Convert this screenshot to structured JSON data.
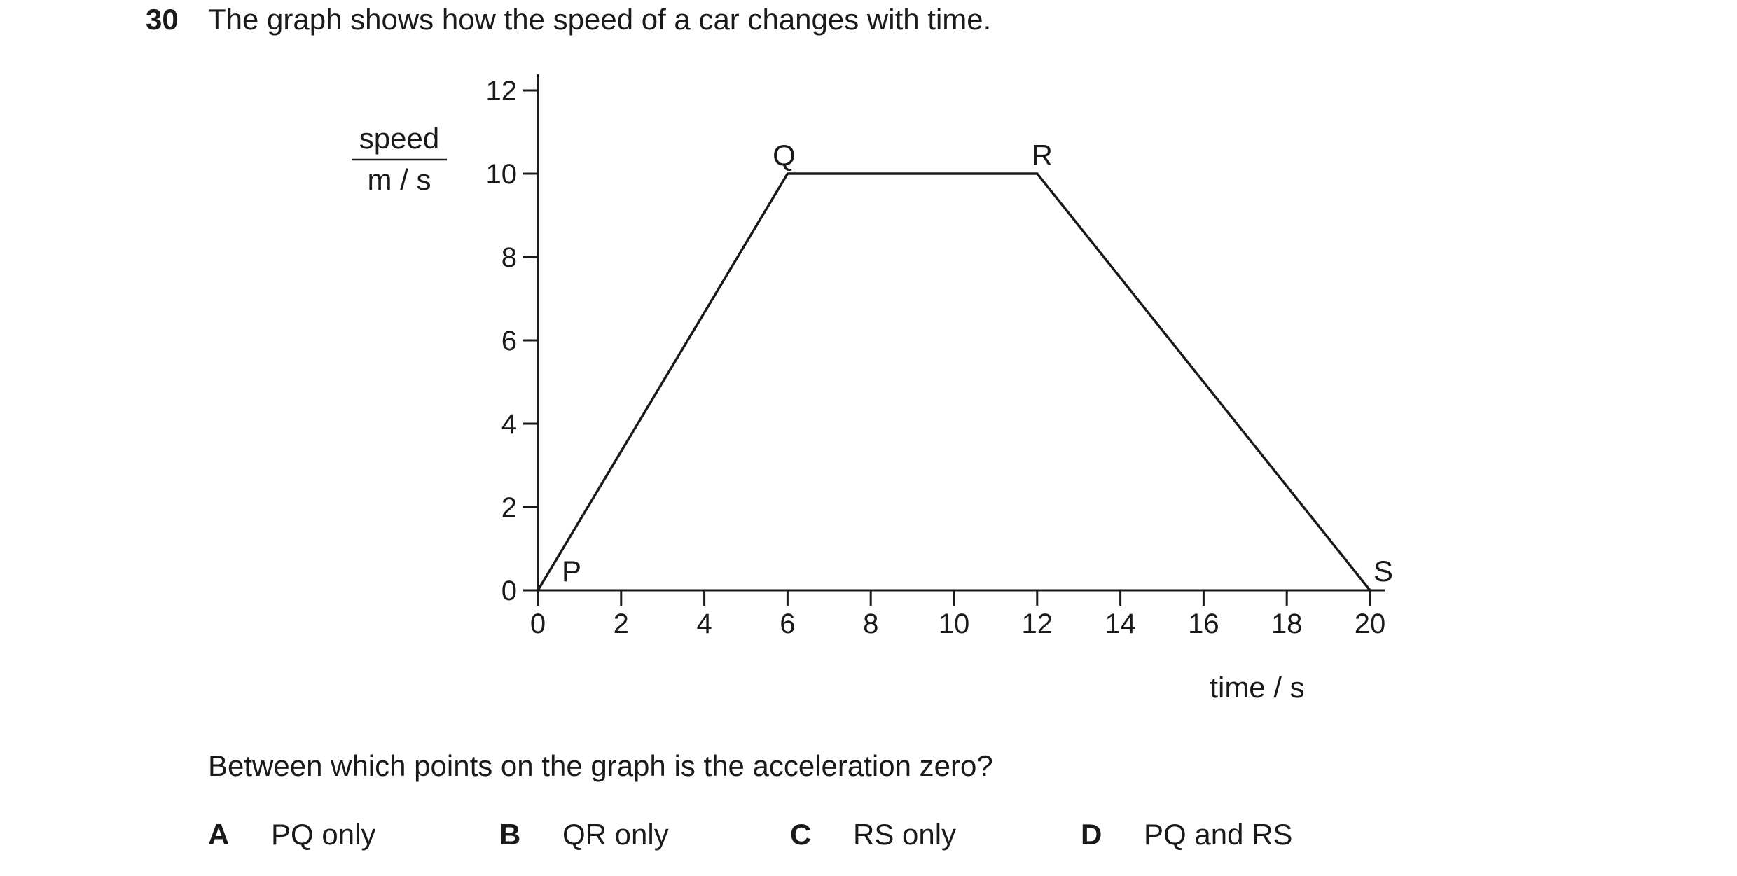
{
  "question": {
    "number": "30",
    "stem": "The graph shows how the speed of a car changes with time.",
    "prompt": "Between which points on the graph is the acceleration zero?",
    "options": [
      {
        "letter": "A",
        "text": "PQ only"
      },
      {
        "letter": "B",
        "text": "QR only"
      },
      {
        "letter": "C",
        "text": "RS only"
      },
      {
        "letter": "D",
        "text": "PQ and RS"
      }
    ]
  },
  "chart_data": {
    "type": "line",
    "ylabel_top": "speed",
    "ylabel_bottom": "m / s",
    "xlabel": "time / s",
    "xlim": [
      0,
      20
    ],
    "ylim": [
      0,
      12
    ],
    "xticks": [
      0,
      2,
      4,
      6,
      8,
      10,
      12,
      14,
      16,
      18,
      20
    ],
    "yticks": [
      0,
      2,
      4,
      6,
      8,
      10,
      12
    ],
    "grid": false,
    "series": [
      {
        "points": [
          {
            "label": "P",
            "x": 0,
            "y": 0
          },
          {
            "label": "Q",
            "x": 6,
            "y": 10
          },
          {
            "label": "R",
            "x": 12,
            "y": 10
          },
          {
            "label": "S",
            "x": 20,
            "y": 0
          }
        ]
      }
    ]
  }
}
